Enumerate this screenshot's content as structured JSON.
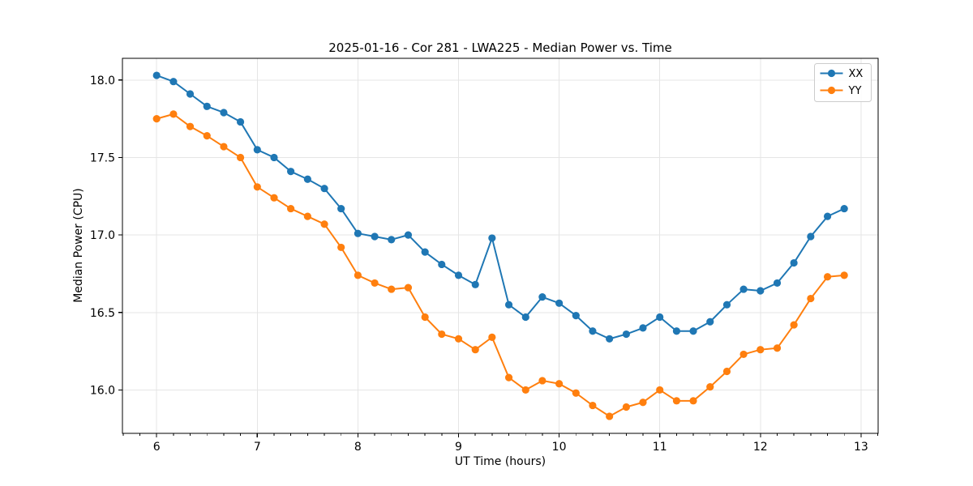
{
  "chart_data": {
    "type": "line",
    "title": "2025-01-16 - Cor 281 - LWA225 - Median Power vs. Time",
    "xlabel": "UT Time (hours)",
    "ylabel": "Median Power (CPU)",
    "xlim": [
      5.66,
      13.17
    ],
    "ylim": [
      15.72,
      18.14
    ],
    "xticks": [
      6,
      7,
      8,
      9,
      10,
      11,
      12,
      13
    ],
    "yticks": [
      16.0,
      16.5,
      17.0,
      17.5,
      18.0
    ],
    "x_minor_tick_step_hours": 0.1667,
    "grid": true,
    "legend_position": "upper right",
    "background_color": "#ffffff",
    "grid_color": "#e5e5e5",
    "x": [
      6.0,
      6.167,
      6.333,
      6.5,
      6.667,
      6.833,
      7.0,
      7.167,
      7.333,
      7.5,
      7.667,
      7.833,
      8.0,
      8.167,
      8.333,
      8.5,
      8.667,
      8.833,
      9.0,
      9.167,
      9.333,
      9.5,
      9.667,
      9.833,
      10.0,
      10.167,
      10.333,
      10.5,
      10.667,
      10.833,
      11.0,
      11.167,
      11.333,
      11.5,
      11.667,
      11.833,
      12.0,
      12.167,
      12.333,
      12.5,
      12.667,
      12.833
    ],
    "series": [
      {
        "name": "XX",
        "color": "#1f77b4",
        "marker": "circle",
        "values": [
          18.03,
          17.99,
          17.91,
          17.83,
          17.79,
          17.73,
          17.55,
          17.5,
          17.41,
          17.36,
          17.3,
          17.17,
          17.01,
          16.99,
          16.97,
          17.0,
          16.89,
          16.81,
          16.74,
          16.68,
          16.98,
          16.55,
          16.47,
          16.6,
          16.56,
          16.48,
          16.38,
          16.33,
          16.36,
          16.4,
          16.47,
          16.38,
          16.38,
          16.44,
          16.55,
          16.65,
          16.64,
          16.69,
          16.82,
          16.99,
          17.12,
          17.17
        ]
      },
      {
        "name": "YY",
        "color": "#ff7f0e",
        "marker": "circle",
        "values": [
          17.75,
          17.78,
          17.7,
          17.64,
          17.57,
          17.5,
          17.31,
          17.24,
          17.17,
          17.12,
          17.07,
          16.92,
          16.74,
          16.69,
          16.65,
          16.66,
          16.47,
          16.36,
          16.33,
          16.26,
          16.34,
          16.08,
          16.0,
          16.06,
          16.04,
          15.98,
          15.9,
          15.83,
          15.89,
          15.92,
          16.0,
          15.93,
          15.93,
          16.02,
          16.12,
          16.23,
          16.26,
          16.27,
          16.42,
          16.59,
          16.73,
          16.74
        ]
      }
    ]
  }
}
